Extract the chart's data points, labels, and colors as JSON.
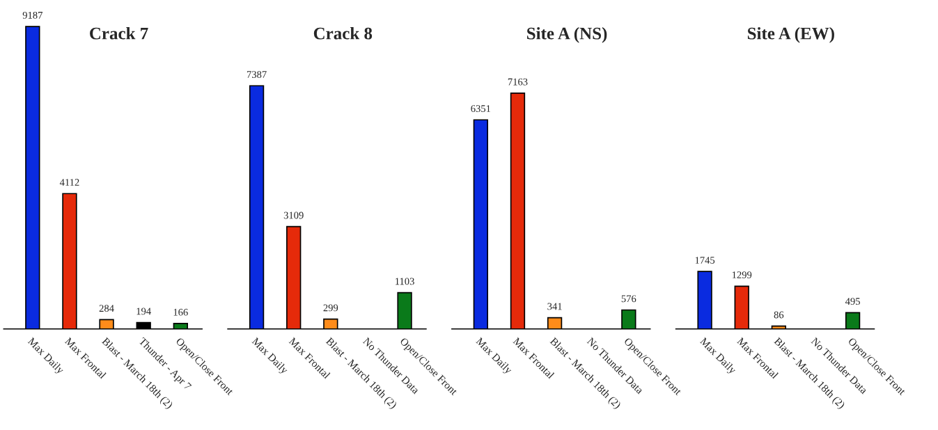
{
  "chart_data": [
    {
      "type": "bar",
      "title": "Crack 7",
      "categories": [
        "Max Daily",
        "Max Frontal",
        "Blast - March 18th (2)",
        "Thunder - Apr 7",
        "Open/Close Front"
      ],
      "values": [
        9187,
        4112,
        284,
        194,
        166
      ],
      "colors": [
        "#0a2be0",
        "#e52a0a",
        "#ff8c1a",
        "#000000",
        "#0a7a1a"
      ],
      "data_labels": true,
      "tick_labels": "x"
    },
    {
      "type": "bar",
      "title": "Crack 8",
      "categories": [
        "Max Daily",
        "Max Frontal",
        "Blast - March 18th (2)",
        "No Thunder Data",
        "Open/Close Front"
      ],
      "values": [
        7387,
        3109,
        299,
        null,
        1103
      ],
      "colors": [
        "#0a2be0",
        "#e52a0a",
        "#ff8c1a",
        "#000000",
        "#0a7a1a"
      ],
      "data_labels": true,
      "tick_labels": "x"
    },
    {
      "type": "bar",
      "title": "Site A (NS)",
      "categories": [
        "Max Daily",
        "Max Frontal",
        "Blast - March 18th (2)",
        "No Thunder Data",
        "Open/Close Front"
      ],
      "values": [
        6351,
        7163,
        341,
        null,
        576
      ],
      "colors": [
        "#0a2be0",
        "#e52a0a",
        "#ff8c1a",
        "#000000",
        "#0a7a1a"
      ],
      "data_labels": true,
      "tick_labels": "x"
    },
    {
      "type": "bar",
      "title": "Site A (EW)",
      "categories": [
        "Max Daily",
        "Max Frontal",
        "Blast - March 18th (2)",
        "No Thunder Data",
        "Open/Close Front"
      ],
      "values": [
        1745,
        1299,
        86,
        null,
        495
      ],
      "colors": [
        "#0a2be0",
        "#e52a0a",
        "#ff8c1a",
        "#000000",
        "#0a7a1a"
      ],
      "data_labels": true,
      "tick_labels": "x"
    }
  ]
}
